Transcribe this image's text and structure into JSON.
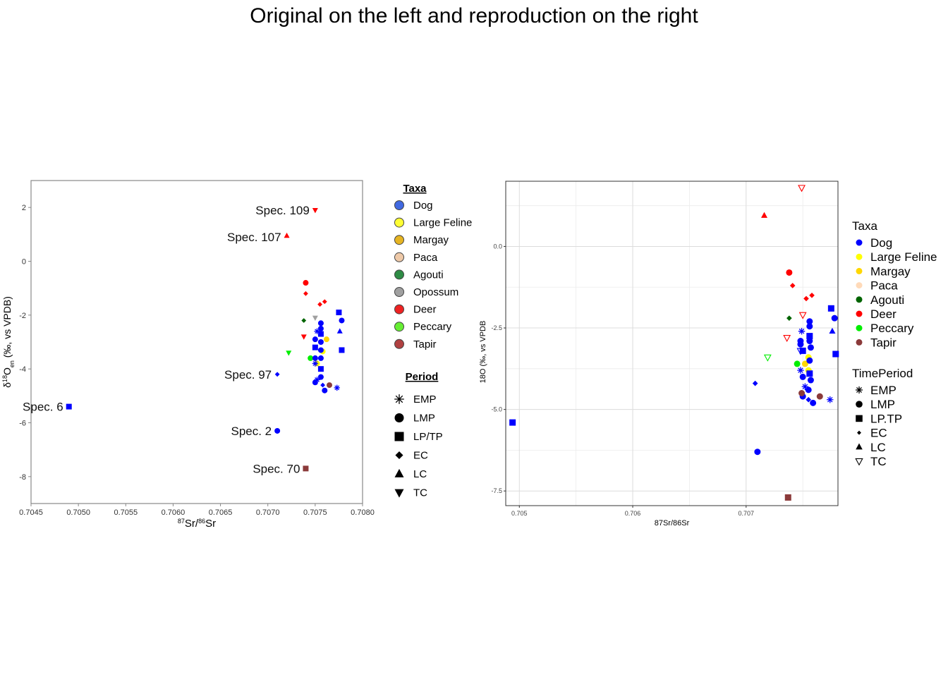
{
  "title": "Original on the left and reproduction on the right",
  "colors": {
    "Dog": "#0000ff",
    "Large Feline": "#ffff00",
    "Margay": "#ffd700",
    "Paca": "#ffdab9",
    "Agouti": "#006400",
    "Opossum": "#a0a0a0",
    "Deer": "#ff0000",
    "Peccary": "#00ee00",
    "Tapir": "#8b3a3a"
  },
  "left_legend_colors": {
    "Dog": "#4169e1",
    "Large Feline": "#ffff33",
    "Margay": "#e6b422",
    "Paca": "#eec9a8",
    "Agouti": "#2e8b45",
    "Opossum": "#a0a0a0",
    "Deer": "#ee2222",
    "Peccary": "#66ee33",
    "Tapir": "#b04040"
  },
  "left_legend": {
    "taxa_title": "Taxa",
    "taxa": [
      "Dog",
      "Large Feline",
      "Margay",
      "Paca",
      "Agouti",
      "Opossum",
      "Deer",
      "Peccary",
      "Tapir"
    ],
    "period_title": "Period",
    "periods": [
      {
        "label": "EMP",
        "shape": "asterisk"
      },
      {
        "label": "LMP",
        "shape": "circle"
      },
      {
        "label": "LP/TP",
        "shape": "square"
      },
      {
        "label": "EC",
        "shape": "diamond"
      },
      {
        "label": "LC",
        "shape": "triangle"
      },
      {
        "label": "TC",
        "shape": "triangle-down"
      }
    ]
  },
  "right_legend": {
    "taxa_title": "Taxa",
    "taxa": [
      "Dog",
      "Large Feline",
      "Margay",
      "Paca",
      "Agouti",
      "Deer",
      "Peccary",
      "Tapir"
    ],
    "period_title": "TimePeriod",
    "periods": [
      {
        "label": "EMP",
        "shape": "asterisk"
      },
      {
        "label": "LMP",
        "shape": "circle"
      },
      {
        "label": "LP.TP",
        "shape": "square"
      },
      {
        "label": "EC",
        "shape": "diamond"
      },
      {
        "label": "LC",
        "shape": "triangle"
      },
      {
        "label": "TC",
        "shape": "triangle-open"
      }
    ]
  },
  "chart_data": [
    {
      "type": "scatter",
      "panel": "original",
      "xlabel": "87Sr/86Sr",
      "ylabel": "δ18Oen (‰, vs VPDB)",
      "xlim": [
        0.7045,
        0.708
      ],
      "ylim": [
        -9,
        3
      ],
      "xticks": [
        "0.7045",
        "0.7050",
        "0.7055",
        "0.7060",
        "0.7065",
        "0.7070",
        "0.7075",
        "0.7080"
      ],
      "yticks": [
        "2",
        "0",
        "-2",
        "-4",
        "-6",
        "-8"
      ],
      "grid": false,
      "annotations": [
        {
          "text": "Spec. 109",
          "x": 0.7075,
          "y": 1.9
        },
        {
          "text": "Spec. 107",
          "x": 0.7072,
          "y": 0.9
        },
        {
          "text": "Spec. 97",
          "x": 0.7071,
          "y": -4.2
        },
        {
          "text": "Spec. 6",
          "x": 0.7049,
          "y": -5.4
        },
        {
          "text": "Spec. 2",
          "x": 0.7071,
          "y": -6.3
        },
        {
          "text": "Spec. 70",
          "x": 0.7074,
          "y": -7.7
        }
      ],
      "points": [
        {
          "x": 0.7075,
          "y": 1.9,
          "taxon": "Deer",
          "period": "TC"
        },
        {
          "x": 0.7072,
          "y": 0.95,
          "taxon": "Deer",
          "period": "LC"
        },
        {
          "x": 0.7071,
          "y": -4.2,
          "taxon": "Dog",
          "period": "EC"
        },
        {
          "x": 0.7049,
          "y": -5.4,
          "taxon": "Dog",
          "period": "LP/TP"
        },
        {
          "x": 0.7071,
          "y": -6.3,
          "taxon": "Dog",
          "period": "LMP"
        },
        {
          "x": 0.7074,
          "y": -7.7,
          "taxon": "Tapir",
          "period": "LP/TP"
        },
        {
          "x": 0.7074,
          "y": -0.8,
          "taxon": "Deer",
          "period": "LMP"
        },
        {
          "x": 0.7074,
          "y": -1.2,
          "taxon": "Deer",
          "period": "EC"
        },
        {
          "x": 0.70755,
          "y": -1.6,
          "taxon": "Deer",
          "period": "EC"
        },
        {
          "x": 0.7076,
          "y": -1.5,
          "taxon": "Deer",
          "period": "EC"
        },
        {
          "x": 0.70738,
          "y": -2.8,
          "taxon": "Deer",
          "period": "TC"
        },
        {
          "x": 0.70738,
          "y": -2.2,
          "taxon": "Agouti",
          "period": "EC"
        },
        {
          "x": 0.7075,
          "y": -2.1,
          "taxon": "Opossum",
          "period": "TC"
        },
        {
          "x": 0.70722,
          "y": -3.4,
          "taxon": "Peccary",
          "period": "TC"
        },
        {
          "x": 0.70745,
          "y": -3.6,
          "taxon": "Peccary",
          "period": "LMP"
        },
        {
          "x": 0.70758,
          "y": -3.35,
          "taxon": "Large Feline",
          "period": "LMP"
        },
        {
          "x": 0.70752,
          "y": -3.8,
          "taxon": "Large Feline",
          "period": "LMP"
        },
        {
          "x": 0.70762,
          "y": -2.9,
          "taxon": "Margay",
          "period": "LMP"
        },
        {
          "x": 0.70752,
          "y": -2.6,
          "taxon": "Dog",
          "period": "EMP"
        },
        {
          "x": 0.7075,
          "y": -2.9,
          "taxon": "Dog",
          "period": "LMP"
        },
        {
          "x": 0.7075,
          "y": -3.2,
          "taxon": "Dog",
          "period": "LP/TP"
        },
        {
          "x": 0.7075,
          "y": -3.6,
          "taxon": "Dog",
          "period": "LMP"
        },
        {
          "x": 0.7075,
          "y": -3.8,
          "taxon": "Dog",
          "period": "EMP"
        },
        {
          "x": 0.7075,
          "y": -4.5,
          "taxon": "Dog",
          "period": "LMP"
        },
        {
          "x": 0.70752,
          "y": -4.4,
          "taxon": "Dog",
          "period": "EMP"
        },
        {
          "x": 0.70756,
          "y": -2.3,
          "taxon": "Dog",
          "period": "LMP"
        },
        {
          "x": 0.70756,
          "y": -2.5,
          "taxon": "Dog",
          "period": "LMP"
        },
        {
          "x": 0.70756,
          "y": -2.7,
          "taxon": "Dog",
          "period": "LP/TP"
        },
        {
          "x": 0.70756,
          "y": -3.0,
          "taxon": "Dog",
          "period": "LMP"
        },
        {
          "x": 0.70756,
          "y": -3.3,
          "taxon": "Dog",
          "period": "LMP"
        },
        {
          "x": 0.70756,
          "y": -3.6,
          "taxon": "Dog",
          "period": "LMP"
        },
        {
          "x": 0.70756,
          "y": -4.0,
          "taxon": "Dog",
          "period": "LP/TP"
        },
        {
          "x": 0.70756,
          "y": -4.3,
          "taxon": "Dog",
          "period": "LMP"
        },
        {
          "x": 0.70758,
          "y": -4.6,
          "taxon": "Dog",
          "period": "EC"
        },
        {
          "x": 0.7076,
          "y": -4.8,
          "taxon": "Dog",
          "period": "LMP"
        },
        {
          "x": 0.70765,
          "y": -4.6,
          "taxon": "Tapir",
          "period": "LMP"
        },
        {
          "x": 0.70775,
          "y": -1.9,
          "taxon": "Dog",
          "period": "LP/TP"
        },
        {
          "x": 0.70778,
          "y": -2.2,
          "taxon": "Dog",
          "period": "LMP"
        },
        {
          "x": 0.70776,
          "y": -2.6,
          "taxon": "Dog",
          "period": "LC"
        },
        {
          "x": 0.70778,
          "y": -3.3,
          "taxon": "Dog",
          "period": "LP/TP"
        },
        {
          "x": 0.70773,
          "y": -4.7,
          "taxon": "Dog",
          "period": "EMP"
        }
      ]
    },
    {
      "type": "scatter",
      "panel": "reproduction",
      "xlabel": "87Sr/86Sr",
      "ylabel": "18O (‰, vs VPDB",
      "xlim": [
        0.70488,
        0.70781
      ],
      "ylim": [
        -7.95,
        2.0
      ],
      "xticks": [
        0.705,
        0.706,
        0.707
      ],
      "xtick_labels": [
        "0.705",
        "0.706",
        "0.707"
      ],
      "yticks": [
        0.0,
        -2.5,
        -5.0,
        -7.5
      ],
      "ytick_labels": [
        "0.0",
        "-2.5",
        "-5.0",
        "-7.5"
      ],
      "grid": true,
      "legend_position": "right",
      "points": [
        {
          "x": 0.70749,
          "y": 1.8,
          "taxon": "Deer",
          "period": "TC"
        },
        {
          "x": 0.70716,
          "y": 0.95,
          "taxon": "Deer",
          "period": "LC"
        },
        {
          "x": 0.70708,
          "y": -4.2,
          "taxon": "Dog",
          "period": "EC"
        },
        {
          "x": 0.70494,
          "y": -5.4,
          "taxon": "Dog",
          "period": "LP.TP"
        },
        {
          "x": 0.7071,
          "y": -6.3,
          "taxon": "Dog",
          "period": "LMP"
        },
        {
          "x": 0.70737,
          "y": -7.7,
          "taxon": "Tapir",
          "period": "LP.TP"
        },
        {
          "x": 0.70738,
          "y": -0.8,
          "taxon": "Deer",
          "period": "LMP"
        },
        {
          "x": 0.70741,
          "y": -1.2,
          "taxon": "Deer",
          "period": "EC"
        },
        {
          "x": 0.70753,
          "y": -1.6,
          "taxon": "Deer",
          "period": "EC"
        },
        {
          "x": 0.70758,
          "y": -1.5,
          "taxon": "Deer",
          "period": "EC"
        },
        {
          "x": 0.70736,
          "y": -2.8,
          "taxon": "Deer",
          "period": "TC"
        },
        {
          "x": 0.70738,
          "y": -2.2,
          "taxon": "Agouti",
          "period": "EC"
        },
        {
          "x": 0.7075,
          "y": -2.1,
          "taxon": "Deer",
          "period": "TC"
        },
        {
          "x": 0.70719,
          "y": -3.4,
          "taxon": "Peccary",
          "period": "TC"
        },
        {
          "x": 0.70745,
          "y": -3.6,
          "taxon": "Peccary",
          "period": "LMP"
        },
        {
          "x": 0.70748,
          "y": -3.2,
          "taxon": "Dog",
          "period": "TC"
        },
        {
          "x": 0.70755,
          "y": -3.4,
          "taxon": "Large Feline",
          "period": "LMP"
        },
        {
          "x": 0.70755,
          "y": -3.8,
          "taxon": "Large Feline",
          "period": "LMP"
        },
        {
          "x": 0.70752,
          "y": -3.6,
          "taxon": "Margay",
          "period": "LMP"
        },
        {
          "x": 0.70749,
          "y": -2.6,
          "taxon": "Dog",
          "period": "EMP"
        },
        {
          "x": 0.70748,
          "y": -2.9,
          "taxon": "Dog",
          "period": "LMP"
        },
        {
          "x": 0.70748,
          "y": -3.0,
          "taxon": "Dog",
          "period": "LMP"
        },
        {
          "x": 0.7075,
          "y": -3.2,
          "taxon": "Dog",
          "period": "LP.TP"
        },
        {
          "x": 0.70748,
          "y": -3.8,
          "taxon": "Dog",
          "period": "EMP"
        },
        {
          "x": 0.7075,
          "y": -4.0,
          "taxon": "Dog",
          "period": "LMP"
        },
        {
          "x": 0.70752,
          "y": -4.3,
          "taxon": "Dog",
          "period": "EMP"
        },
        {
          "x": 0.7075,
          "y": -4.6,
          "taxon": "Dog",
          "period": "LMP"
        },
        {
          "x": 0.70756,
          "y": -2.3,
          "taxon": "Dog",
          "period": "LMP"
        },
        {
          "x": 0.70756,
          "y": -2.45,
          "taxon": "Dog",
          "period": "LMP"
        },
        {
          "x": 0.70756,
          "y": -2.75,
          "taxon": "Dog",
          "period": "LP.TP"
        },
        {
          "x": 0.70756,
          "y": -2.9,
          "taxon": "Dog",
          "period": "LMP"
        },
        {
          "x": 0.70757,
          "y": -3.1,
          "taxon": "Dog",
          "period": "LMP"
        },
        {
          "x": 0.70756,
          "y": -3.5,
          "taxon": "Dog",
          "period": "LMP"
        },
        {
          "x": 0.70756,
          "y": -3.9,
          "taxon": "Dog",
          "period": "LP.TP"
        },
        {
          "x": 0.70757,
          "y": -4.1,
          "taxon": "Dog",
          "period": "LMP"
        },
        {
          "x": 0.70755,
          "y": -4.4,
          "taxon": "Dog",
          "period": "LMP"
        },
        {
          "x": 0.70755,
          "y": -4.7,
          "taxon": "Dog",
          "period": "EC"
        },
        {
          "x": 0.70759,
          "y": -4.8,
          "taxon": "Dog",
          "period": "LMP"
        },
        {
          "x": 0.70765,
          "y": -4.6,
          "taxon": "Tapir",
          "period": "LMP"
        },
        {
          "x": 0.70749,
          "y": -4.5,
          "taxon": "Tapir",
          "period": "LMP"
        },
        {
          "x": 0.70775,
          "y": -1.9,
          "taxon": "Dog",
          "period": "LP.TP"
        },
        {
          "x": 0.70778,
          "y": -2.2,
          "taxon": "Dog",
          "period": "LMP"
        },
        {
          "x": 0.70776,
          "y": -2.6,
          "taxon": "Dog",
          "period": "LC"
        },
        {
          "x": 0.70779,
          "y": -3.3,
          "taxon": "Dog",
          "period": "LP.TP"
        },
        {
          "x": 0.70774,
          "y": -4.7,
          "taxon": "Dog",
          "period": "EMP"
        }
      ]
    }
  ]
}
